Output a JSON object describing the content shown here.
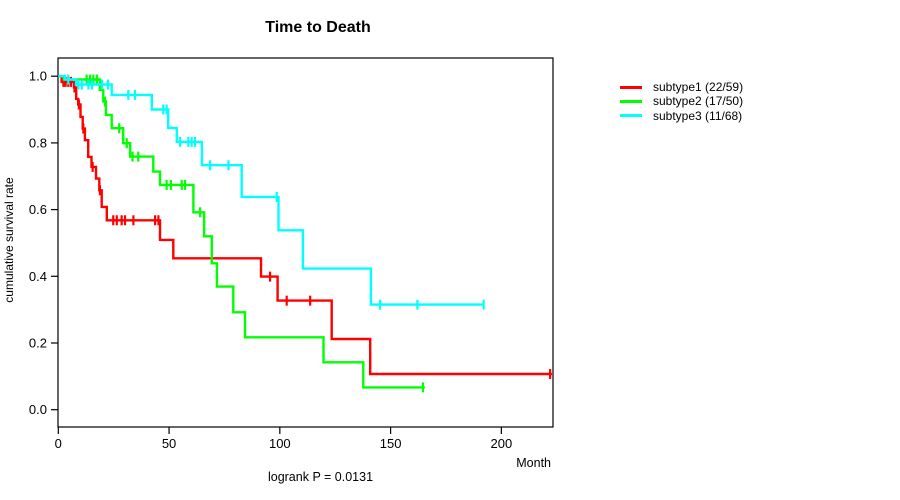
{
  "figure": {
    "title": "Time to Death",
    "x_axis_label": "Month",
    "y_axis_label": "cumulative survival rate",
    "footnote": "logrank P = 0.0131",
    "background_color": "#ffffff",
    "axis_color": "#000000"
  },
  "legend": {
    "entries": [
      {
        "label": "subtype1 (22/59)",
        "color": "#ff0000"
      },
      {
        "label": "subtype2 (17/50)",
        "color": "#00ff00"
      },
      {
        "label": "subtype3 (11/68)",
        "color": "#00ffff"
      }
    ]
  },
  "chart_data": {
    "type": "line",
    "subtype": "kaplan-meier-step-curves",
    "title": "Time to Death",
    "xlabel": "Month",
    "ylabel": "cumulative survival rate",
    "annotation": "logrank P = 0.0131",
    "xlim": [
      0,
      223.5
    ],
    "ylim": [
      -0.045,
      1.05
    ],
    "xticks": [
      0,
      50,
      100,
      150,
      200
    ],
    "yticks": [
      1.0,
      0.8,
      0.6,
      0.4,
      0.2,
      0.0
    ],
    "grid": false,
    "legend_position": "right-outside",
    "series": [
      {
        "id": "subtype1",
        "name": "subtype1 (22/59)",
        "color": "#ff0000",
        "events": 22,
        "n": 59,
        "steps": [
          [
            0,
            1.0
          ],
          [
            1.5,
            0.983
          ],
          [
            7.1,
            0.966
          ],
          [
            8.1,
            0.932
          ],
          [
            9,
            0.915
          ],
          [
            10,
            0.878
          ],
          [
            11,
            0.843
          ],
          [
            12,
            0.808
          ],
          [
            13.5,
            0.758
          ],
          [
            15,
            0.728
          ],
          [
            17,
            0.693
          ],
          [
            18.5,
            0.658
          ],
          [
            19.6,
            0.608
          ],
          [
            21.9,
            0.568
          ],
          [
            45.9,
            0.509
          ],
          [
            51.9,
            0.454
          ],
          [
            91.5,
            0.399
          ],
          [
            99,
            0.327
          ],
          [
            123.4,
            0.212
          ],
          [
            140.8,
            0.107
          ]
        ],
        "censors": [
          [
            2.3,
            0.983
          ],
          [
            3.3,
            0.983
          ],
          [
            4.5,
            0.983
          ],
          [
            5.7,
            0.983
          ],
          [
            7.3,
            0.966
          ],
          [
            9.3,
            0.915
          ],
          [
            11.3,
            0.843
          ],
          [
            15.5,
            0.728
          ],
          [
            18.8,
            0.658
          ],
          [
            24.8,
            0.568
          ],
          [
            26.4,
            0.568
          ],
          [
            28.6,
            0.568
          ],
          [
            30.1,
            0.568
          ],
          [
            33.9,
            0.568
          ],
          [
            43.7,
            0.568
          ],
          [
            45.2,
            0.568
          ],
          [
            95.6,
            0.399
          ],
          [
            103.1,
            0.327
          ],
          [
            113.7,
            0.327
          ],
          [
            222,
            0.107
          ]
        ],
        "end_time": 222.8
      },
      {
        "id": "subtype2",
        "name": "subtype2 (17/50)",
        "color": "#00ff00",
        "events": 17,
        "n": 50,
        "steps": [
          [
            0,
            1.0
          ],
          [
            2.5,
            0.99
          ],
          [
            18.8,
            0.959
          ],
          [
            20.3,
            0.924
          ],
          [
            21.5,
            0.884
          ],
          [
            24.1,
            0.844
          ],
          [
            29.3,
            0.799
          ],
          [
            32.4,
            0.759
          ],
          [
            42.9,
            0.714
          ],
          [
            45.9,
            0.674
          ],
          [
            61,
            0.592
          ],
          [
            65.8,
            0.52
          ],
          [
            69.3,
            0.439
          ],
          [
            71.6,
            0.369
          ],
          [
            79,
            0.292
          ],
          [
            84.3,
            0.217
          ],
          [
            119.7,
            0.142
          ],
          [
            137.7,
            0.067
          ]
        ],
        "censors": [
          [
            12.8,
            0.99
          ],
          [
            14.3,
            0.99
          ],
          [
            15.8,
            0.99
          ],
          [
            17.4,
            0.99
          ],
          [
            21.1,
            0.924
          ],
          [
            27.5,
            0.844
          ],
          [
            30.9,
            0.799
          ],
          [
            33.5,
            0.759
          ],
          [
            36.1,
            0.759
          ],
          [
            48.9,
            0.674
          ],
          [
            50.8,
            0.674
          ],
          [
            55.7,
            0.674
          ],
          [
            57.2,
            0.674
          ],
          [
            64,
            0.592
          ],
          [
            164.6,
            0.067
          ]
        ],
        "end_time": 165.5
      },
      {
        "id": "subtype3",
        "name": "subtype3 (11/68)",
        "color": "#00ffff",
        "events": 11,
        "n": 68,
        "steps": [
          [
            0,
            1.0
          ],
          [
            3,
            0.99
          ],
          [
            8,
            0.975
          ],
          [
            24.1,
            0.944
          ],
          [
            42.2,
            0.9
          ],
          [
            49.6,
            0.845
          ],
          [
            53.5,
            0.803
          ],
          [
            64.8,
            0.733
          ],
          [
            82.8,
            0.638
          ],
          [
            99.4,
            0.538
          ],
          [
            110.4,
            0.423
          ],
          [
            141.1,
            0.315
          ]
        ],
        "censors": [
          [
            4.5,
            0.99
          ],
          [
            9,
            0.975
          ],
          [
            10.6,
            0.975
          ],
          [
            13.6,
            0.975
          ],
          [
            15.2,
            0.975
          ],
          [
            19.7,
            0.975
          ],
          [
            22.4,
            0.975
          ],
          [
            31.6,
            0.944
          ],
          [
            34.6,
            0.944
          ],
          [
            47.4,
            0.9
          ],
          [
            48.9,
            0.9
          ],
          [
            55,
            0.803
          ],
          [
            58.7,
            0.803
          ],
          [
            60.2,
            0.803
          ],
          [
            61.7,
            0.803
          ],
          [
            68.5,
            0.733
          ],
          [
            76.8,
            0.733
          ],
          [
            98.6,
            0.638
          ],
          [
            145.3,
            0.315
          ],
          [
            162.1,
            0.315
          ],
          [
            192,
            0.315
          ]
        ],
        "end_time": 192.3
      }
    ]
  }
}
